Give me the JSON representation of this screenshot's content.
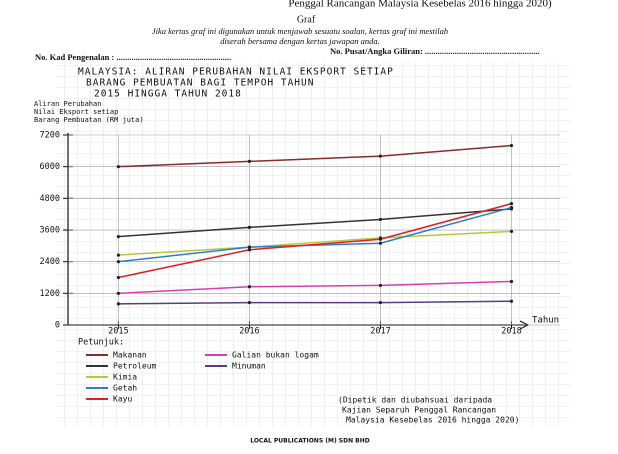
{
  "page": {
    "header": "Penggal Rancangan Malaysia Kesebelas 2016 hingga 2020)",
    "heading": "Graf",
    "instructions": [
      "Jika kertas graf ini digunakan untuk menjawab sesuatu soalan, kertas graf ini mestilah",
      "diserah bersama dengan kertas jawapan anda."
    ],
    "id_field": "No. Kad Pengenalan : ......................................................",
    "center_field": "No. Pusat/Angka Giliran: ......................................................",
    "footer": "LOCAL PUBLICATIONS (M) SDN BHD"
  },
  "chart_data": {
    "type": "line",
    "title": [
      "MALAYSIA: ALIRAN PERUBAHAN NILAI EKSPORT SETIAP",
      "BARANG PEMBUATAN BAGI TEMPOH TAHUN",
      "2015 HINGGA TAHUN 2018"
    ],
    "y_label": [
      "Aliran Perubahan",
      "Nilai Eksport setiap",
      "Barang Pembuatan (RM juta)"
    ],
    "x_label": "Tahun",
    "legend_title": "Petunjuk:",
    "source": [
      "(Dipetik dan diubahsuai daripada",
      "Kajian Separuh Penggal Rancangan",
      "Malaysia Kesebelas 2016 hingga 2020)"
    ],
    "x": [
      2015,
      2016,
      2017,
      2018
    ],
    "xlim": [
      2014.6,
      2018.5
    ],
    "xticks": [
      2015,
      2016,
      2017,
      2018
    ],
    "ylim": [
      0,
      7200
    ],
    "yticks": [
      0,
      1200,
      2400,
      3600,
      4800,
      6000,
      7200
    ],
    "grid": true,
    "series": [
      {
        "name": "Makanan",
        "color": "#8b2a2a",
        "values": [
          6000,
          6200,
          6400,
          6800
        ]
      },
      {
        "name": "Petroleum",
        "color": "#333333",
        "values": [
          3350,
          3700,
          4000,
          4400
        ]
      },
      {
        "name": "Kimia",
        "color": "#b8c83a",
        "values": [
          2650,
          2950,
          3300,
          3550
        ]
      },
      {
        "name": "Getah",
        "color": "#2b7fd0",
        "values": [
          2400,
          2950,
          3100,
          4450
        ]
      },
      {
        "name": "Kayu",
        "color": "#e02020",
        "values": [
          1800,
          2850,
          3250,
          4600
        ]
      },
      {
        "name": "Galian bukan logam",
        "color": "#d43fb4",
        "values": [
          1200,
          1450,
          1500,
          1650
        ]
      },
      {
        "name": "Minuman",
        "color": "#5a3a8a",
        "values": [
          800,
          850,
          850,
          900
        ]
      }
    ]
  }
}
